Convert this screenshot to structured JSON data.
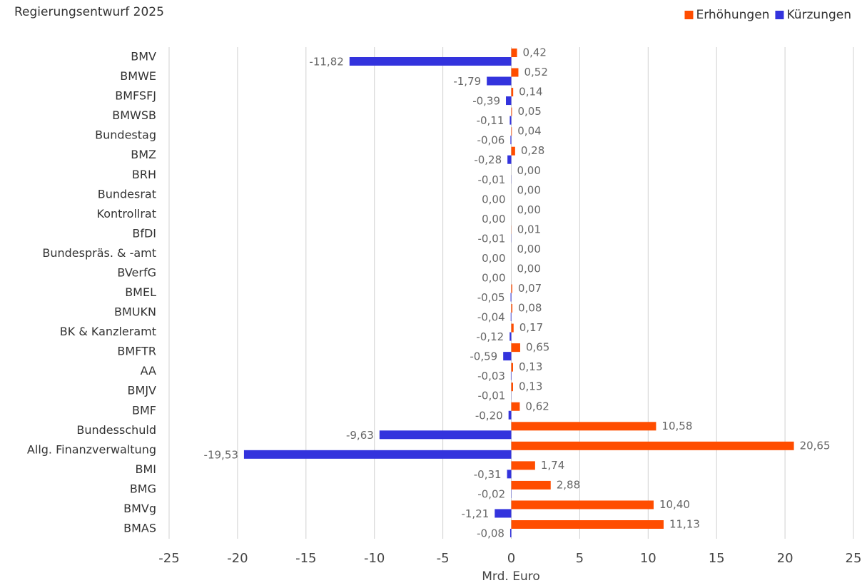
{
  "chart_data": {
    "type": "hbar",
    "title": "Regierungsentwurf 2025",
    "xlabel": "Mrd. Euro",
    "categories": [
      "BMV",
      "BMWE",
      "BMFSFJ",
      "BMWSB",
      "Bundestag",
      "BMZ",
      "BRH",
      "Bundesrat",
      "Kontrollrat",
      "BfDI",
      "Bundespräs. & -amt",
      "BVerfG",
      "BMEL",
      "BMUKN",
      "BK & Kanzleramt",
      "BMFTR",
      "AA",
      "BMJV",
      "BMF",
      "Bundesschuld",
      "Allg. Finanzverwaltung",
      "BMI",
      "BMG",
      "BMVg",
      "BMAS"
    ],
    "series": [
      {
        "name": "Erhöhungen",
        "color": "#ff4d00",
        "values": [
          0.42,
          0.52,
          0.14,
          0.05,
          0.04,
          0.28,
          0,
          0,
          0,
          0.01,
          0,
          0,
          0.07,
          0.08,
          0.17,
          0.65,
          0.13,
          0.13,
          0.62,
          10.58,
          20.65,
          1.74,
          2.88,
          10.4,
          11.13
        ],
        "value_labels": [
          "0,42",
          "0,52",
          "0,14",
          "0,05",
          "0,04",
          "0,28",
          "0,00",
          "0,00",
          "0,00",
          "0,01",
          "0,00",
          "0,00",
          "0,07",
          "0,08",
          "0,17",
          "0,65",
          "0,13",
          "0,13",
          "0,62",
          "10,58",
          "20,65",
          "1,74",
          "2,88",
          "10,40",
          "11,13"
        ]
      },
      {
        "name": "Kürzungen",
        "color": "#3333dd",
        "values": [
          -11.82,
          -1.79,
          -0.39,
          -0.11,
          -0.06,
          -0.28,
          -0.01,
          0,
          0,
          -0.01,
          0,
          0,
          -0.05,
          -0.04,
          -0.12,
          -0.59,
          -0.03,
          -0.01,
          -0.2,
          -9.63,
          -19.53,
          -0.31,
          -0.02,
          -1.21,
          -0.08
        ],
        "value_labels": [
          "-11,82",
          "-1,79",
          "-0,39",
          "-0,11",
          "-0,06",
          "-0,28",
          "-0,01",
          "0,00",
          "0,00",
          "-0,01",
          "0,00",
          "0,00",
          "-0,05",
          "-0,04",
          "-0,12",
          "-0,59",
          "-0,03",
          "-0,01",
          "-0,20",
          "-9,63",
          "-19,53",
          "-0,31",
          "-0,02",
          "-1,21",
          "-0,08"
        ]
      }
    ],
    "xlim": [
      -25,
      25
    ],
    "xticks": [
      -25,
      -20,
      -15,
      -10,
      -5,
      0,
      5,
      10,
      15,
      20,
      25
    ],
    "grid": true,
    "legend": "top-right"
  }
}
